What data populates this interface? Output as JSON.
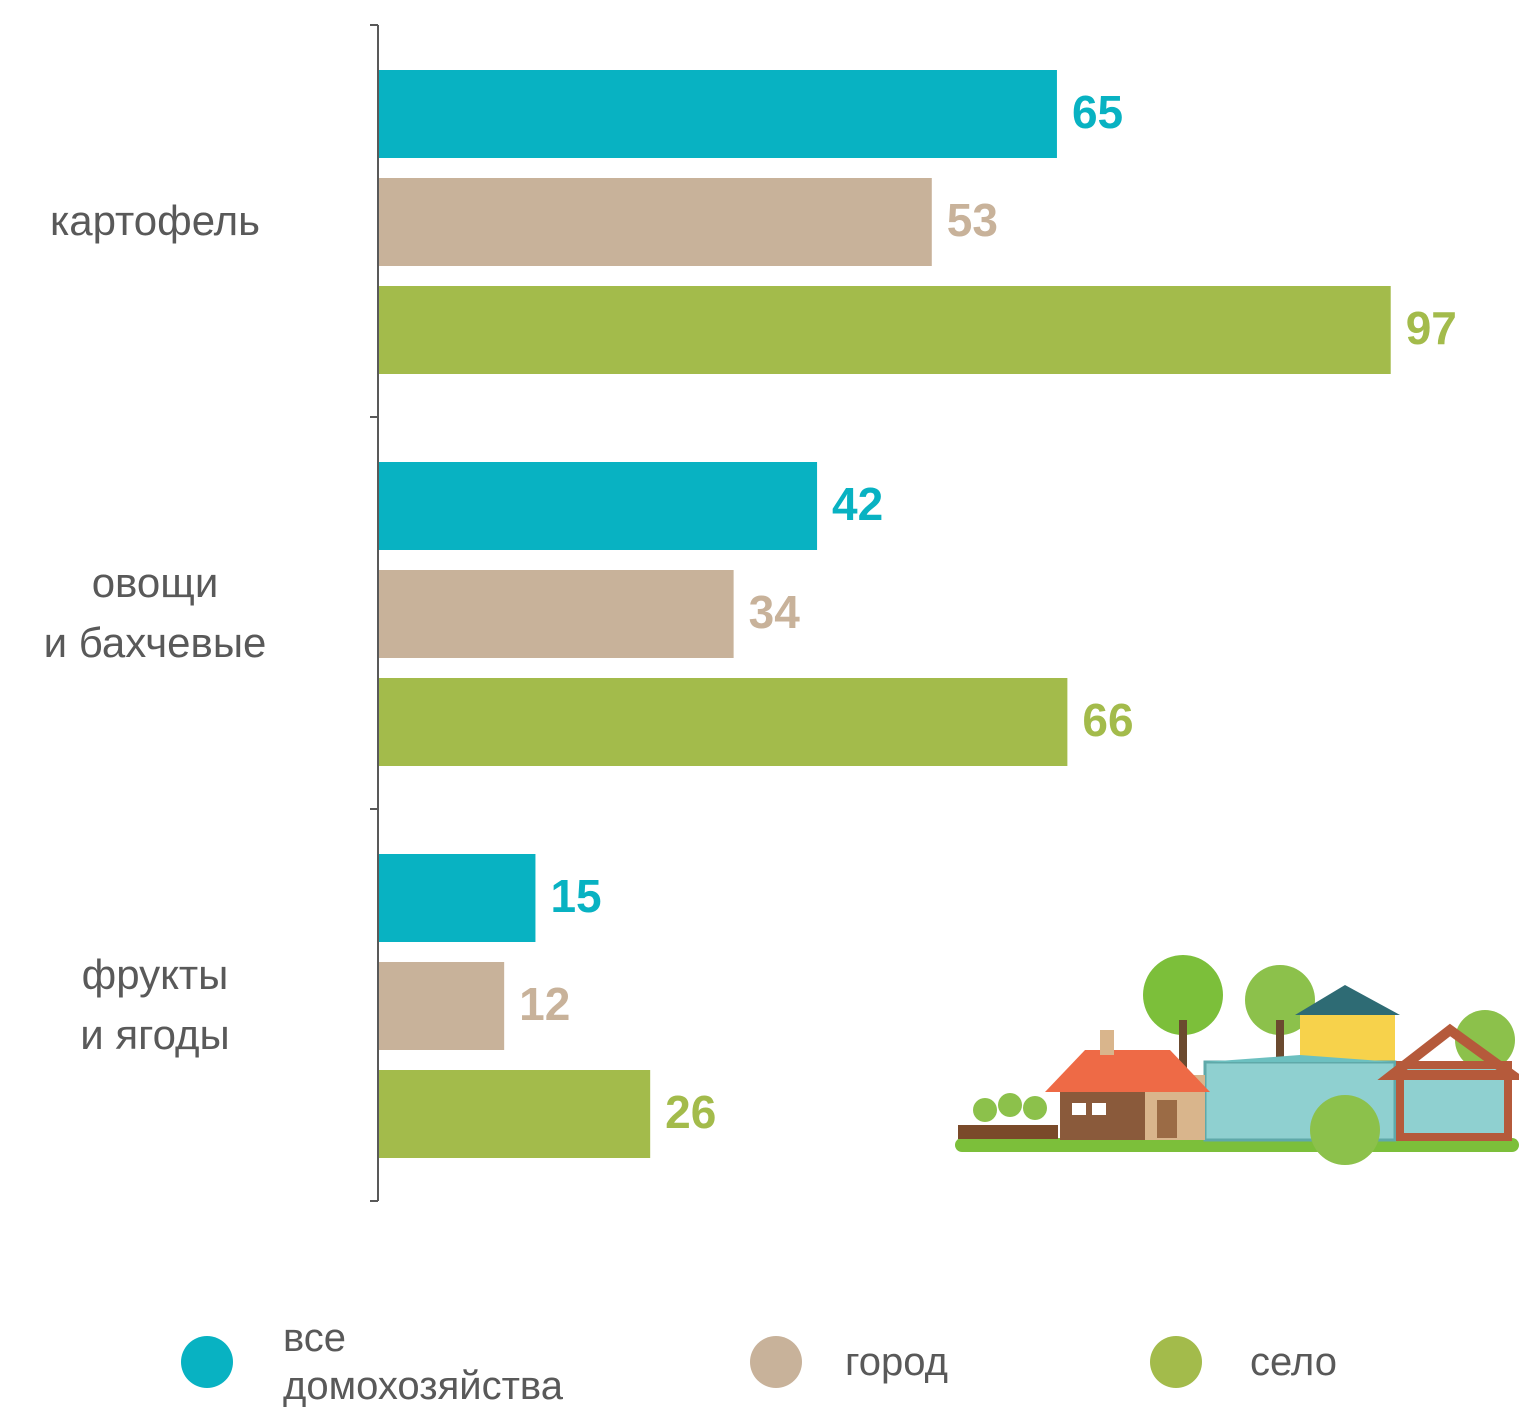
{
  "chart_data": {
    "type": "bar",
    "orientation": "horizontal",
    "categories": [
      "картофель",
      "овощи\nи бахчевые",
      "фрукты\nи ягоды"
    ],
    "series": [
      {
        "name": "все\nдомохозяйства",
        "color": "#08b2c2",
        "values": [
          65,
          42,
          15
        ]
      },
      {
        "name": "город",
        "color": "#c8b29a",
        "values": [
          53,
          34,
          12
        ]
      },
      {
        "name": "село",
        "color": "#a3bb4b",
        "values": [
          97,
          66,
          26
        ]
      }
    ],
    "legend": "bottom"
  }
}
